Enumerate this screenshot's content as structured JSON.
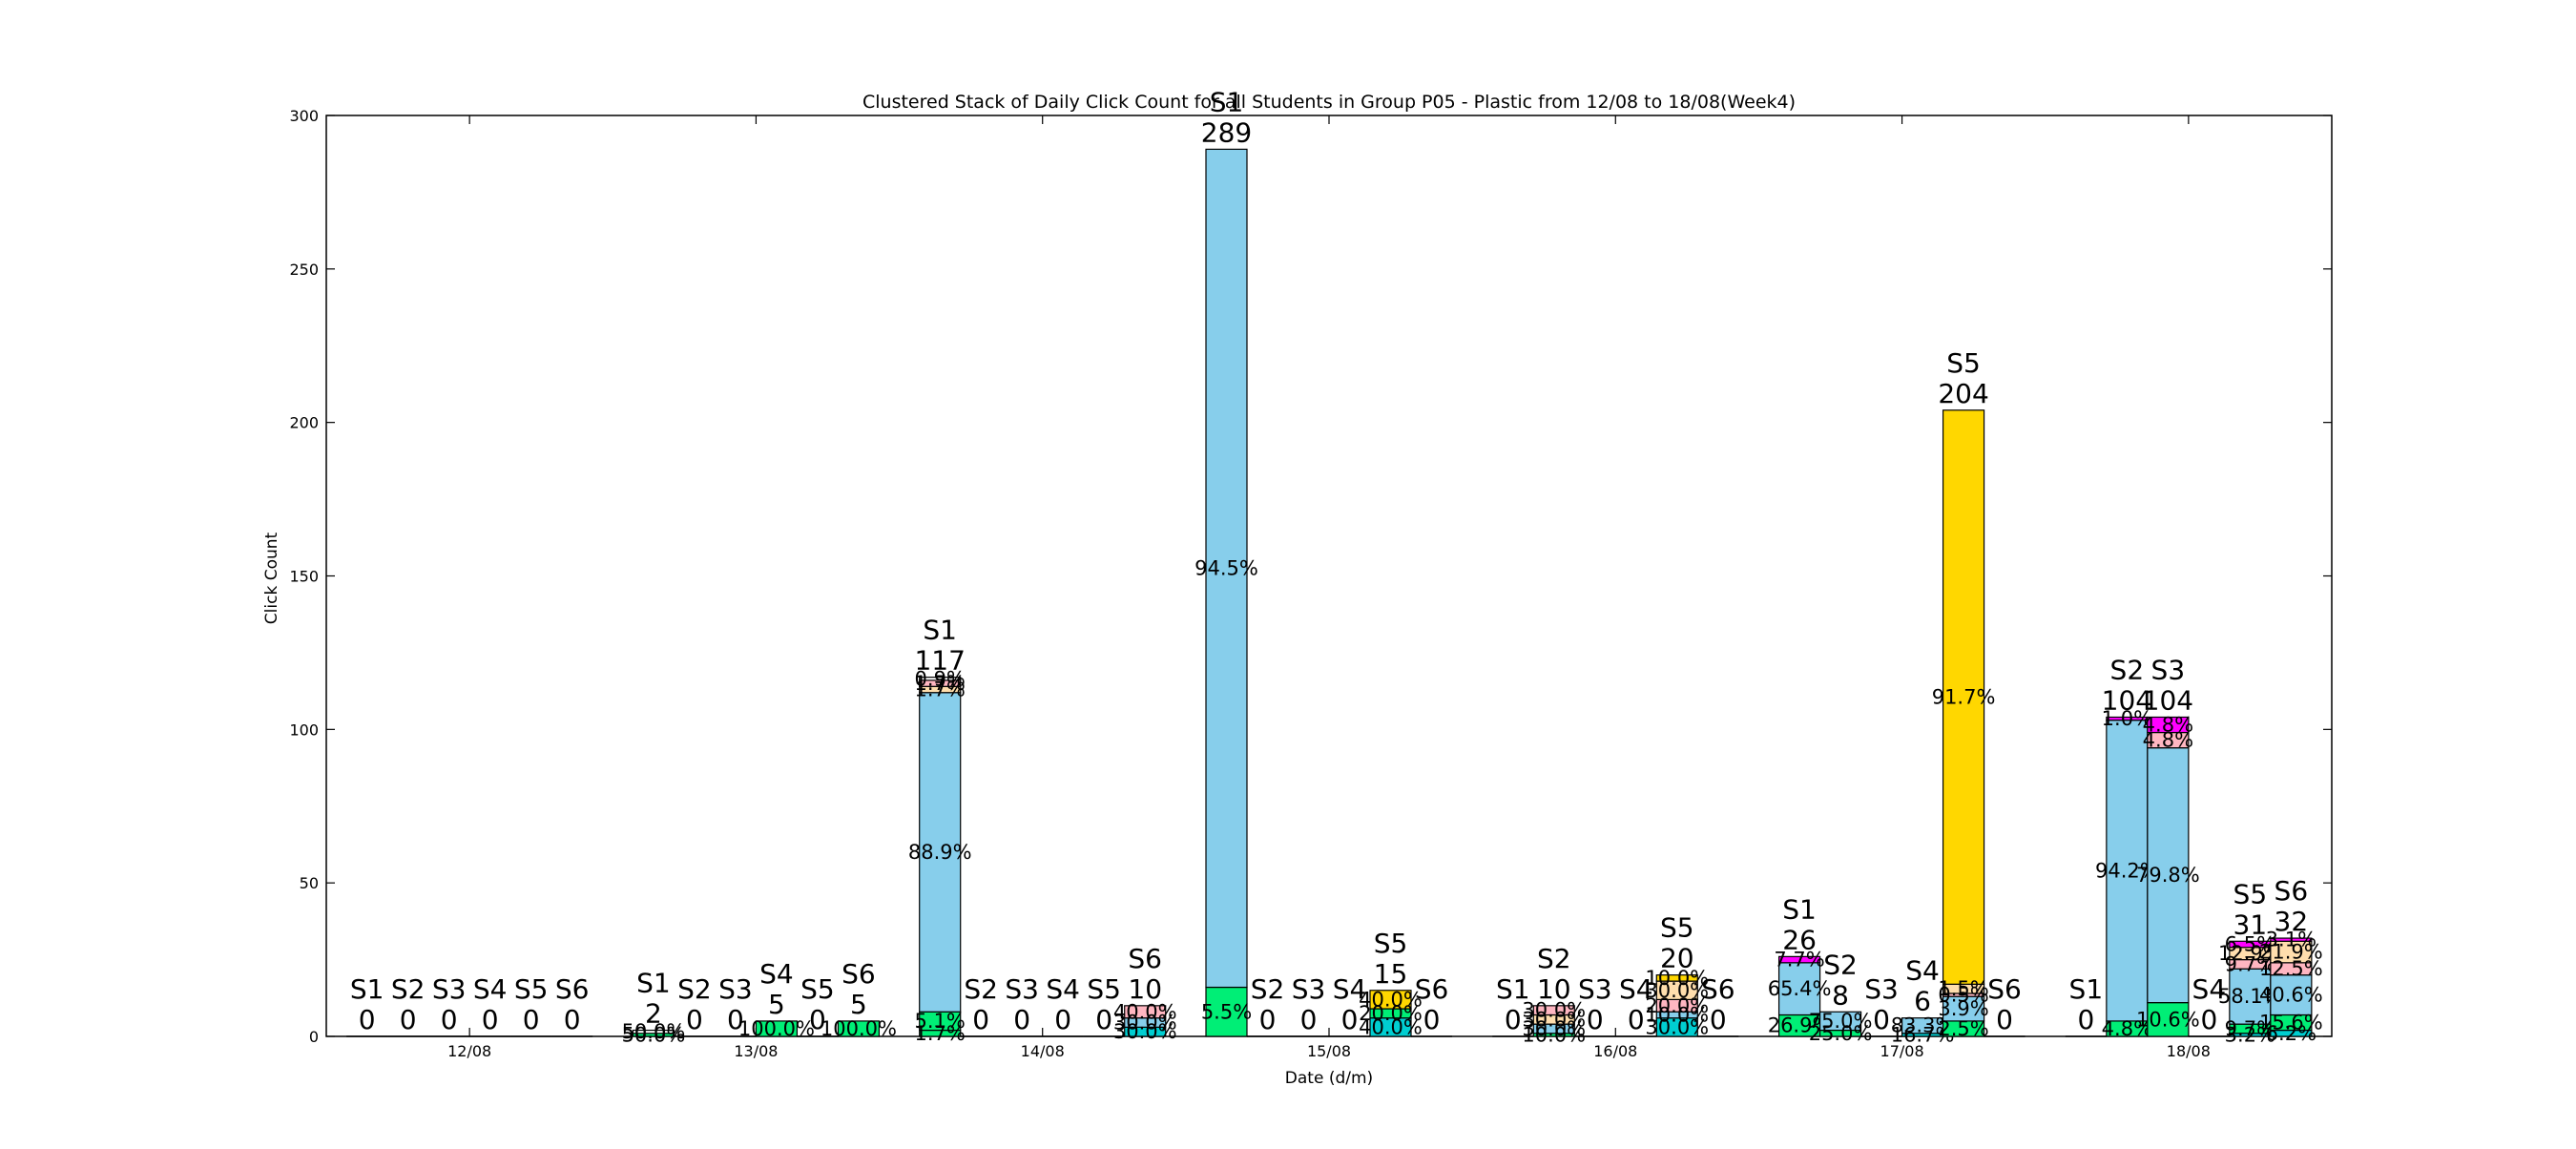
{
  "chart_data": {
    "type": "bar",
    "stacked": true,
    "clustered": true,
    "title": "Clustered Stack of Daily Click Count for all Students in Group P05 - Plastic from 12/08 to 18/08(Week4)",
    "xlabel": "Date (d/m)",
    "ylabel": "Click Count",
    "ylim": [
      0,
      300
    ],
    "yticks": [
      0,
      50,
      100,
      150,
      200,
      250,
      300
    ],
    "categories": [
      "12/08",
      "13/08",
      "14/08",
      "15/08",
      "16/08",
      "17/08",
      "18/08"
    ],
    "students": [
      "S1",
      "S2",
      "S3",
      "S4",
      "S5",
      "S6"
    ],
    "legend": "none",
    "grid": false,
    "colors": {
      "green": "#00ee76",
      "blue": "#87ceeb",
      "cyan": "#00ced1",
      "tan": "#ffdead",
      "pink": "#ffb6c1",
      "magenta": "#ff00ff",
      "gold": "#ffd700",
      "white": "#ffffff"
    },
    "groups": [
      {
        "date": "12/08",
        "bars": [
          {
            "student": "S1",
            "total": 0,
            "segments": []
          },
          {
            "student": "S2",
            "total": 0,
            "segments": []
          },
          {
            "student": "S3",
            "total": 0,
            "segments": []
          },
          {
            "student": "S4",
            "total": 0,
            "segments": []
          },
          {
            "student": "S5",
            "total": 0,
            "segments": []
          },
          {
            "student": "S6",
            "total": 0,
            "segments": []
          }
        ]
      },
      {
        "date": "13/08",
        "bars": [
          {
            "student": "S1",
            "total": 2,
            "segments": [
              {
                "value": 1,
                "color": "green",
                "label": "50.0%"
              },
              {
                "value": 1,
                "color": "white",
                "label": "50.0%"
              }
            ]
          },
          {
            "student": "S2",
            "total": 0,
            "segments": []
          },
          {
            "student": "S3",
            "total": 0,
            "segments": []
          },
          {
            "student": "S4",
            "total": 5,
            "segments": [
              {
                "value": 5,
                "color": "green",
                "label": "100.0%"
              }
            ]
          },
          {
            "student": "S5",
            "total": 0,
            "segments": []
          },
          {
            "student": "S6",
            "total": 5,
            "segments": [
              {
                "value": 5,
                "color": "green",
                "label": "100.0%"
              }
            ]
          }
        ]
      },
      {
        "date": "14/08",
        "bars": [
          {
            "student": "S1",
            "total": 117,
            "segments": [
              {
                "value": 2,
                "color": "green",
                "label": "1.7%"
              },
              {
                "value": 6,
                "color": "green",
                "label": "5.1%"
              },
              {
                "value": 104,
                "color": "blue",
                "label": "88.9%"
              },
              {
                "value": 2,
                "color": "tan",
                "label": "1.7%"
              },
              {
                "value": 2,
                "color": "pink",
                "label": "1.7%"
              },
              {
                "value": 1,
                "color": "white",
                "label": "0.9%"
              }
            ]
          },
          {
            "student": "S2",
            "total": 0,
            "segments": []
          },
          {
            "student": "S3",
            "total": 0,
            "segments": []
          },
          {
            "student": "S4",
            "total": 0,
            "segments": []
          },
          {
            "student": "S5",
            "total": 0,
            "segments": []
          },
          {
            "student": "S6",
            "total": 10,
            "segments": [
              {
                "value": 3,
                "color": "cyan",
                "label": "30.0%"
              },
              {
                "value": 3,
                "color": "blue",
                "label": "30.0%"
              },
              {
                "value": 4,
                "color": "pink",
                "label": "40.0%"
              }
            ]
          }
        ]
      },
      {
        "date": "15/08",
        "bars": [
          {
            "student": "S1",
            "total": 289,
            "segments": [
              {
                "value": 16,
                "color": "green",
                "label": "5.5%"
              },
              {
                "value": 273,
                "color": "blue",
                "label": "94.5%"
              }
            ]
          },
          {
            "student": "S2",
            "total": 0,
            "segments": []
          },
          {
            "student": "S3",
            "total": 0,
            "segments": []
          },
          {
            "student": "S4",
            "total": 0,
            "segments": []
          },
          {
            "student": "S5",
            "total": 15,
            "segments": [
              {
                "value": 6,
                "color": "cyan",
                "label": "40.0%"
              },
              {
                "value": 3,
                "color": "green",
                "label": "20.0%"
              },
              {
                "value": 6,
                "color": "gold",
                "label": "40.0%"
              }
            ]
          },
          {
            "student": "S6",
            "total": 0,
            "segments": []
          }
        ]
      },
      {
        "date": "16/08",
        "bars": [
          {
            "student": "S1",
            "total": 0,
            "segments": []
          },
          {
            "student": "S2",
            "total": 10,
            "segments": [
              {
                "value": 1,
                "color": "green",
                "label": "10.0%"
              },
              {
                "value": 3,
                "color": "blue",
                "label": "30.0%"
              },
              {
                "value": 3,
                "color": "tan",
                "label": "30.0%"
              },
              {
                "value": 3,
                "color": "pink",
                "label": "30.0%"
              }
            ]
          },
          {
            "student": "S3",
            "total": 0,
            "segments": []
          },
          {
            "student": "S4",
            "total": 0,
            "segments": []
          },
          {
            "student": "S5",
            "total": 20,
            "segments": [
              {
                "value": 6,
                "color": "cyan",
                "label": "30.0%"
              },
              {
                "value": 2,
                "color": "blue",
                "label": "10.0%"
              },
              {
                "value": 4,
                "color": "pink",
                "label": "20.0%"
              },
              {
                "value": 6,
                "color": "tan",
                "label": "30.0%"
              },
              {
                "value": 2,
                "color": "gold",
                "label": "10.0%"
              }
            ]
          },
          {
            "student": "S6",
            "total": 0,
            "segments": []
          }
        ]
      },
      {
        "date": "17/08",
        "bars": [
          {
            "student": "S1",
            "total": 26,
            "segments": [
              {
                "value": 7,
                "color": "green",
                "label": "26.9%"
              },
              {
                "value": 17,
                "color": "blue",
                "label": "65.4%"
              },
              {
                "value": 2,
                "color": "magenta",
                "label": "7.7%"
              }
            ]
          },
          {
            "student": "S2",
            "total": 8,
            "segments": [
              {
                "value": 2,
                "color": "green",
                "label": "25.0%"
              },
              {
                "value": 6,
                "color": "blue",
                "label": "75.0%"
              }
            ]
          },
          {
            "student": "S3",
            "total": 0,
            "segments": []
          },
          {
            "student": "S4",
            "total": 6,
            "segments": [
              {
                "value": 1,
                "color": "cyan",
                "label": "16.7%"
              },
              {
                "value": 5,
                "color": "blue",
                "label": "83.3%"
              }
            ]
          },
          {
            "student": "S5",
            "total": 204,
            "segments": [
              {
                "value": 5,
                "color": "green",
                "label": "2.5%"
              },
              {
                "value": 8,
                "color": "blue",
                "label": "3.9%"
              },
              {
                "value": 1,
                "color": "pink",
                "label": "0.5%"
              },
              {
                "value": 3,
                "color": "tan",
                "label": "1.5%"
              },
              {
                "value": 187,
                "color": "gold",
                "label": "91.7%"
              }
            ]
          },
          {
            "student": "S6",
            "total": 0,
            "segments": []
          }
        ]
      },
      {
        "date": "18/08",
        "bars": [
          {
            "student": "S1",
            "total": 0,
            "segments": []
          },
          {
            "student": "S2",
            "total": 104,
            "segments": [
              {
                "value": 5,
                "color": "green",
                "label": "4.8%"
              },
              {
                "value": 98,
                "color": "blue",
                "label": "94.2%"
              },
              {
                "value": 1,
                "color": "magenta",
                "label": "1.0%"
              }
            ]
          },
          {
            "student": "S3",
            "total": 104,
            "segments": [
              {
                "value": 11,
                "color": "green",
                "label": "10.6%"
              },
              {
                "value": 83,
                "color": "blue",
                "label": "79.8%"
              },
              {
                "value": 5,
                "color": "pink",
                "label": "4.8%"
              },
              {
                "value": 5,
                "color": "magenta",
                "label": "4.8%"
              }
            ]
          },
          {
            "student": "S4",
            "total": 0,
            "segments": []
          },
          {
            "student": "S5",
            "total": 31,
            "segments": [
              {
                "value": 1,
                "color": "cyan",
                "label": "3.2%"
              },
              {
                "value": 3,
                "color": "green",
                "label": "9.7%"
              },
              {
                "value": 18,
                "color": "blue",
                "label": "58.1%"
              },
              {
                "value": 3,
                "color": "pink",
                "label": "9.7%"
              },
              {
                "value": 4,
                "color": "tan",
                "label": "12.9%"
              },
              {
                "value": 2,
                "color": "magenta",
                "label": "6.5%"
              }
            ]
          },
          {
            "student": "S6",
            "total": 32,
            "segments": [
              {
                "value": 2,
                "color": "cyan",
                "label": "6.2%"
              },
              {
                "value": 5,
                "color": "green",
                "label": "15.6%"
              },
              {
                "value": 13,
                "color": "blue",
                "label": "40.6%"
              },
              {
                "value": 4,
                "color": "pink",
                "label": "12.5%"
              },
              {
                "value": 7,
                "color": "tan",
                "label": "21.9%"
              },
              {
                "value": 1,
                "color": "magenta",
                "label": "3.1%"
              }
            ]
          }
        ]
      }
    ]
  }
}
